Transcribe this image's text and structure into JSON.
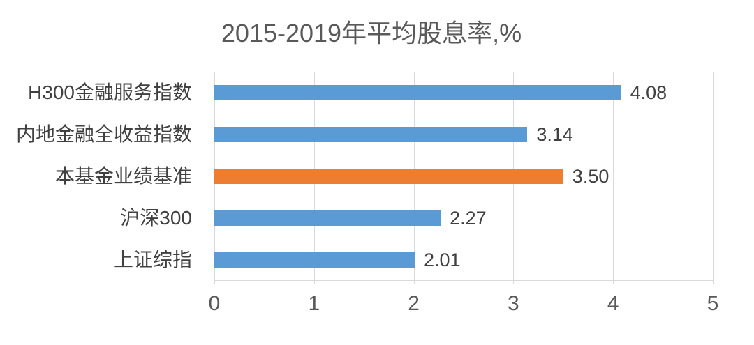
{
  "chart_data": {
    "type": "bar",
    "orientation": "horizontal",
    "title": "2015-2019年平均股息率,%",
    "categories": [
      "H300金融服务指数",
      "内地金融全收益指数",
      "本基金业绩基准",
      "沪深300",
      "上证综指"
    ],
    "values": [
      4.08,
      3.14,
      3.5,
      2.27,
      2.01
    ],
    "value_labels": [
      "4.08",
      "3.14",
      "3.50",
      "2.27",
      "2.01"
    ],
    "bar_colors": [
      "#5b9bd5",
      "#5b9bd5",
      "#ed7d31",
      "#5b9bd5",
      "#5b9bd5"
    ],
    "highlighted_category": "本基金业绩基准",
    "xlim": [
      0,
      5
    ],
    "xticks": [
      "0",
      "1",
      "2",
      "3",
      "4",
      "5"
    ],
    "grid": true,
    "legend": false,
    "style": {
      "series_blue": "#5b9bd5",
      "highlight_orange": "#ed7d31",
      "grid_color": "#d9d9d9",
      "title_color": "#595959",
      "category_label_color": "#404040",
      "value_label_color": "#404040",
      "axis_label_color": "#595959",
      "background": "#ffffff"
    }
  }
}
